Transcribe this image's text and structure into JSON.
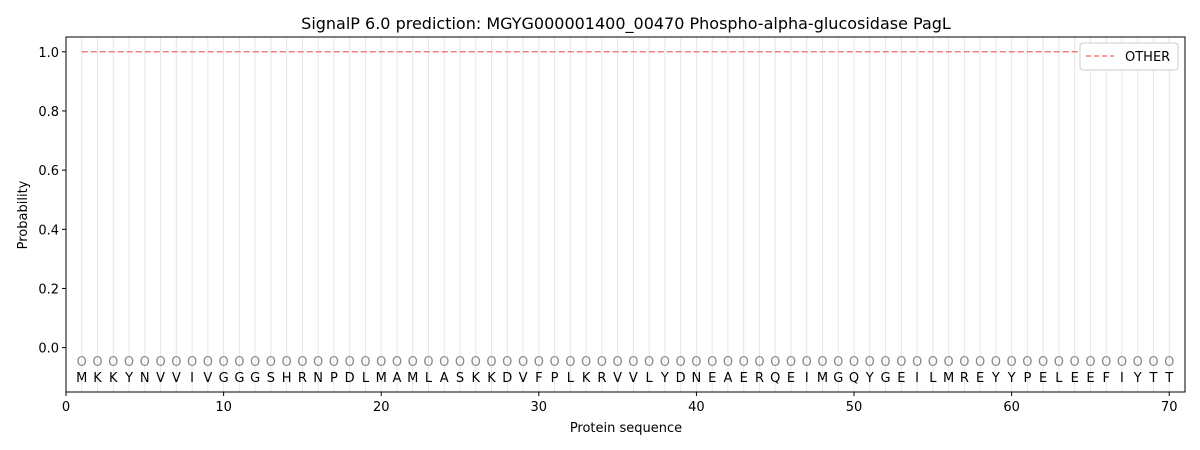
{
  "chart_data": {
    "type": "line",
    "title": "SignalP 6.0 prediction: MGYG000001400_00470 Phospho-alpha-glucosidase PagL",
    "xlabel": "Protein sequence",
    "ylabel": "Probability",
    "xlim": [
      0,
      71
    ],
    "ylim": [
      -0.15,
      1.05
    ],
    "xticks": [
      0,
      10,
      20,
      30,
      40,
      50,
      60,
      70
    ],
    "yticks": [
      0.0,
      0.2,
      0.4,
      0.6,
      0.8,
      1.0
    ],
    "xtick_labels": [
      "0",
      "10",
      "20",
      "30",
      "40",
      "50",
      "60",
      "70"
    ],
    "ytick_labels": [
      "0.0",
      "0.2",
      "0.4",
      "0.6",
      "0.8",
      "1.0"
    ],
    "grid": "vertical lines at each residue",
    "legend_position": "top-right",
    "series": [
      {
        "name": "OTHER",
        "color": "#f08080",
        "style": "dashed",
        "x_start": 1,
        "x_end": 70,
        "value": 1.0
      }
    ],
    "sequence": [
      "M",
      "K",
      "K",
      "Y",
      "N",
      "V",
      "V",
      "I",
      "V",
      "G",
      "G",
      "G",
      "S",
      "H",
      "R",
      "N",
      "P",
      "D",
      "L",
      "M",
      "A",
      "M",
      "L",
      "A",
      "S",
      "K",
      "K",
      "D",
      "V",
      "F",
      "P",
      "L",
      "K",
      "R",
      "V",
      "V",
      "L",
      "Y",
      "D",
      "N",
      "E",
      "A",
      "E",
      "R",
      "Q",
      "E",
      "I",
      "M",
      "G",
      "Q",
      "Y",
      "G",
      "E",
      "I",
      "L",
      "M",
      "R",
      "E",
      "Y",
      "Y",
      "P",
      "E",
      "L",
      "E",
      "E",
      "F",
      "I",
      "Y",
      "T",
      "T"
    ],
    "prediction_labels_char": "O",
    "prediction_label_y": -0.045
  }
}
